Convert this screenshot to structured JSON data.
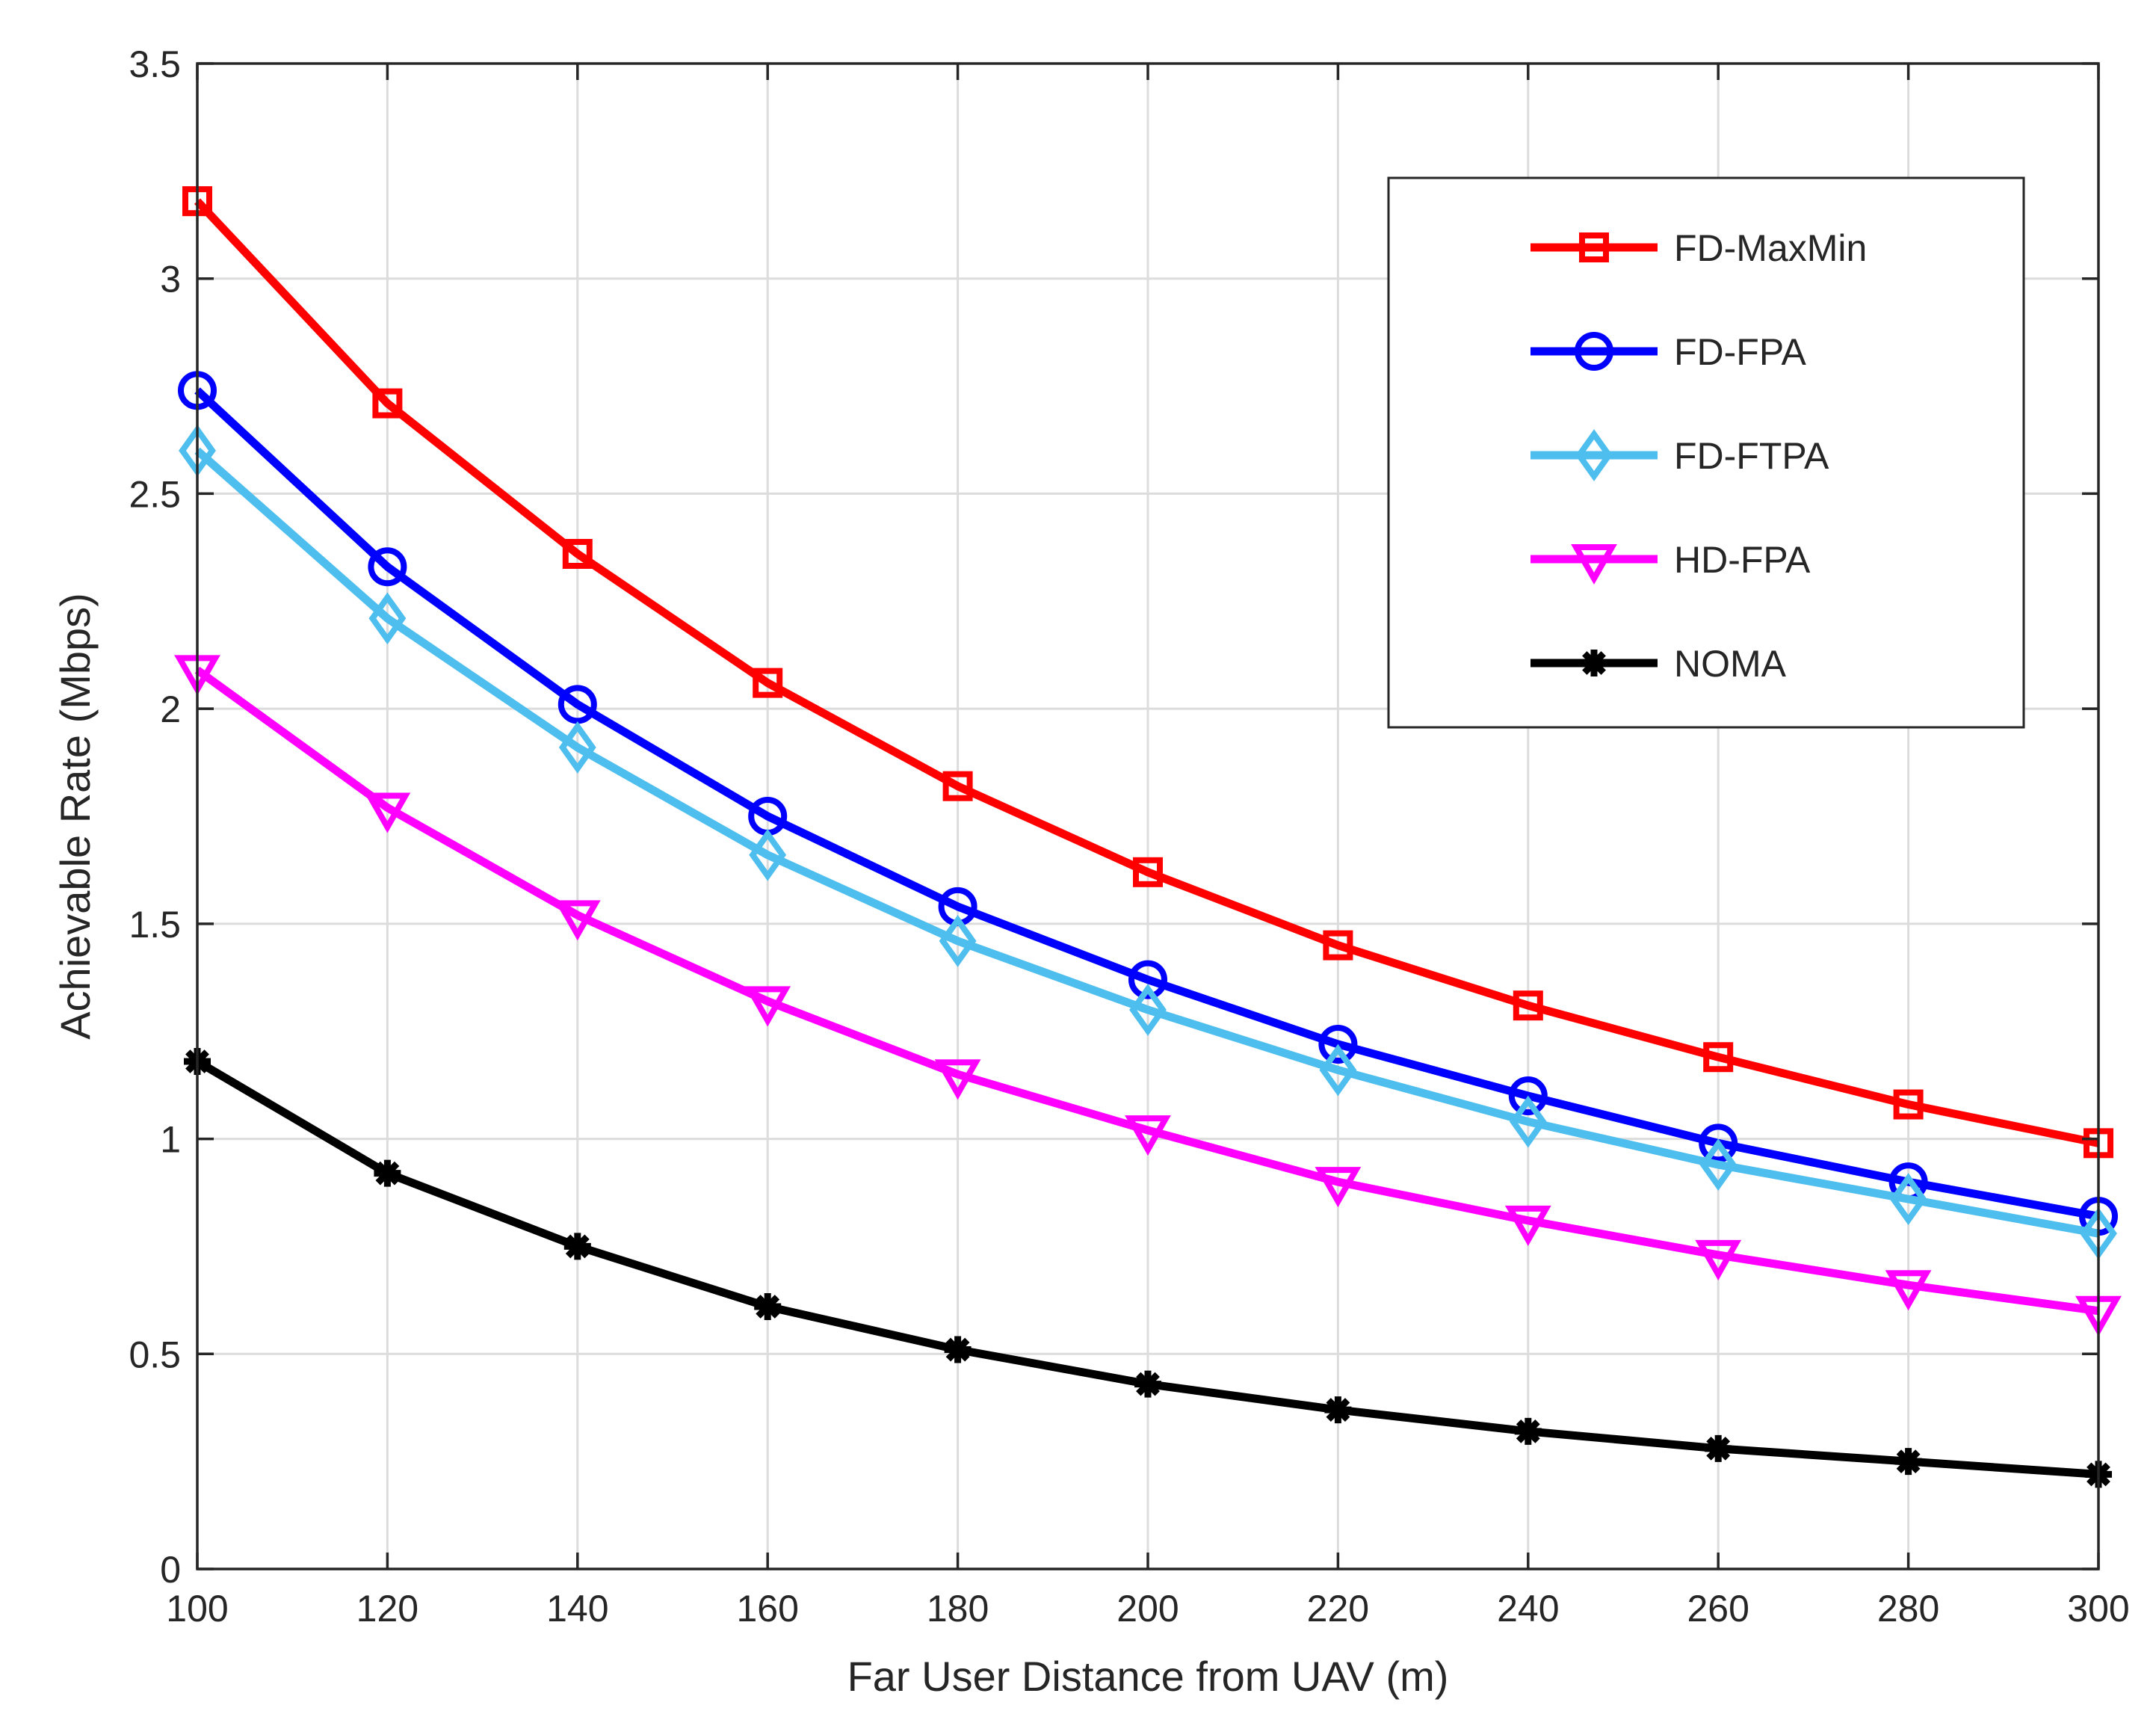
{
  "chart_data": {
    "type": "line",
    "title": "",
    "xlabel": "Far User Distance from UAV (m)",
    "ylabel": "Achievable Rate (Mbps)",
    "xlim": [
      100,
      300
    ],
    "ylim": [
      0,
      3.5
    ],
    "xticks": [
      100,
      120,
      140,
      160,
      180,
      200,
      220,
      240,
      260,
      280,
      300
    ],
    "yticks": [
      0,
      0.5,
      1,
      1.5,
      2,
      2.5,
      3,
      3.5
    ],
    "xtick_labels": [
      "100",
      "120",
      "140",
      "160",
      "180",
      "200",
      "220",
      "240",
      "260",
      "280",
      "300"
    ],
    "ytick_labels": [
      "0",
      "0.5",
      "1",
      "1.5",
      "2",
      "2.5",
      "3",
      "3.5"
    ],
    "grid": true,
    "legend_position": "top-right",
    "x": [
      100,
      120,
      140,
      160,
      180,
      200,
      220,
      240,
      260,
      280,
      300
    ],
    "series": [
      {
        "name": "FD-MaxMin",
        "color": "#ff0000",
        "marker": "square",
        "values": [
          3.18,
          2.71,
          2.36,
          2.06,
          1.82,
          1.62,
          1.45,
          1.31,
          1.19,
          1.08,
          0.99
        ]
      },
      {
        "name": "FD-FPA",
        "color": "#0000ff",
        "marker": "circle",
        "values": [
          2.74,
          2.33,
          2.01,
          1.75,
          1.54,
          1.37,
          1.22,
          1.1,
          0.99,
          0.9,
          0.82
        ]
      },
      {
        "name": "FD-FTPA",
        "color": "#4dbeee",
        "marker": "diamond",
        "values": [
          2.6,
          2.21,
          1.91,
          1.66,
          1.46,
          1.3,
          1.16,
          1.04,
          0.94,
          0.86,
          0.78
        ]
      },
      {
        "name": "HD-FPA",
        "color": "#ff00ff",
        "marker": "triangle-down",
        "values": [
          2.09,
          1.77,
          1.52,
          1.32,
          1.15,
          1.02,
          0.9,
          0.81,
          0.73,
          0.66,
          0.6
        ]
      },
      {
        "name": "NOMA",
        "color": "#000000",
        "marker": "asterisk",
        "values": [
          1.18,
          0.92,
          0.75,
          0.61,
          0.51,
          0.43,
          0.37,
          0.32,
          0.28,
          0.25,
          0.22
        ]
      }
    ]
  }
}
